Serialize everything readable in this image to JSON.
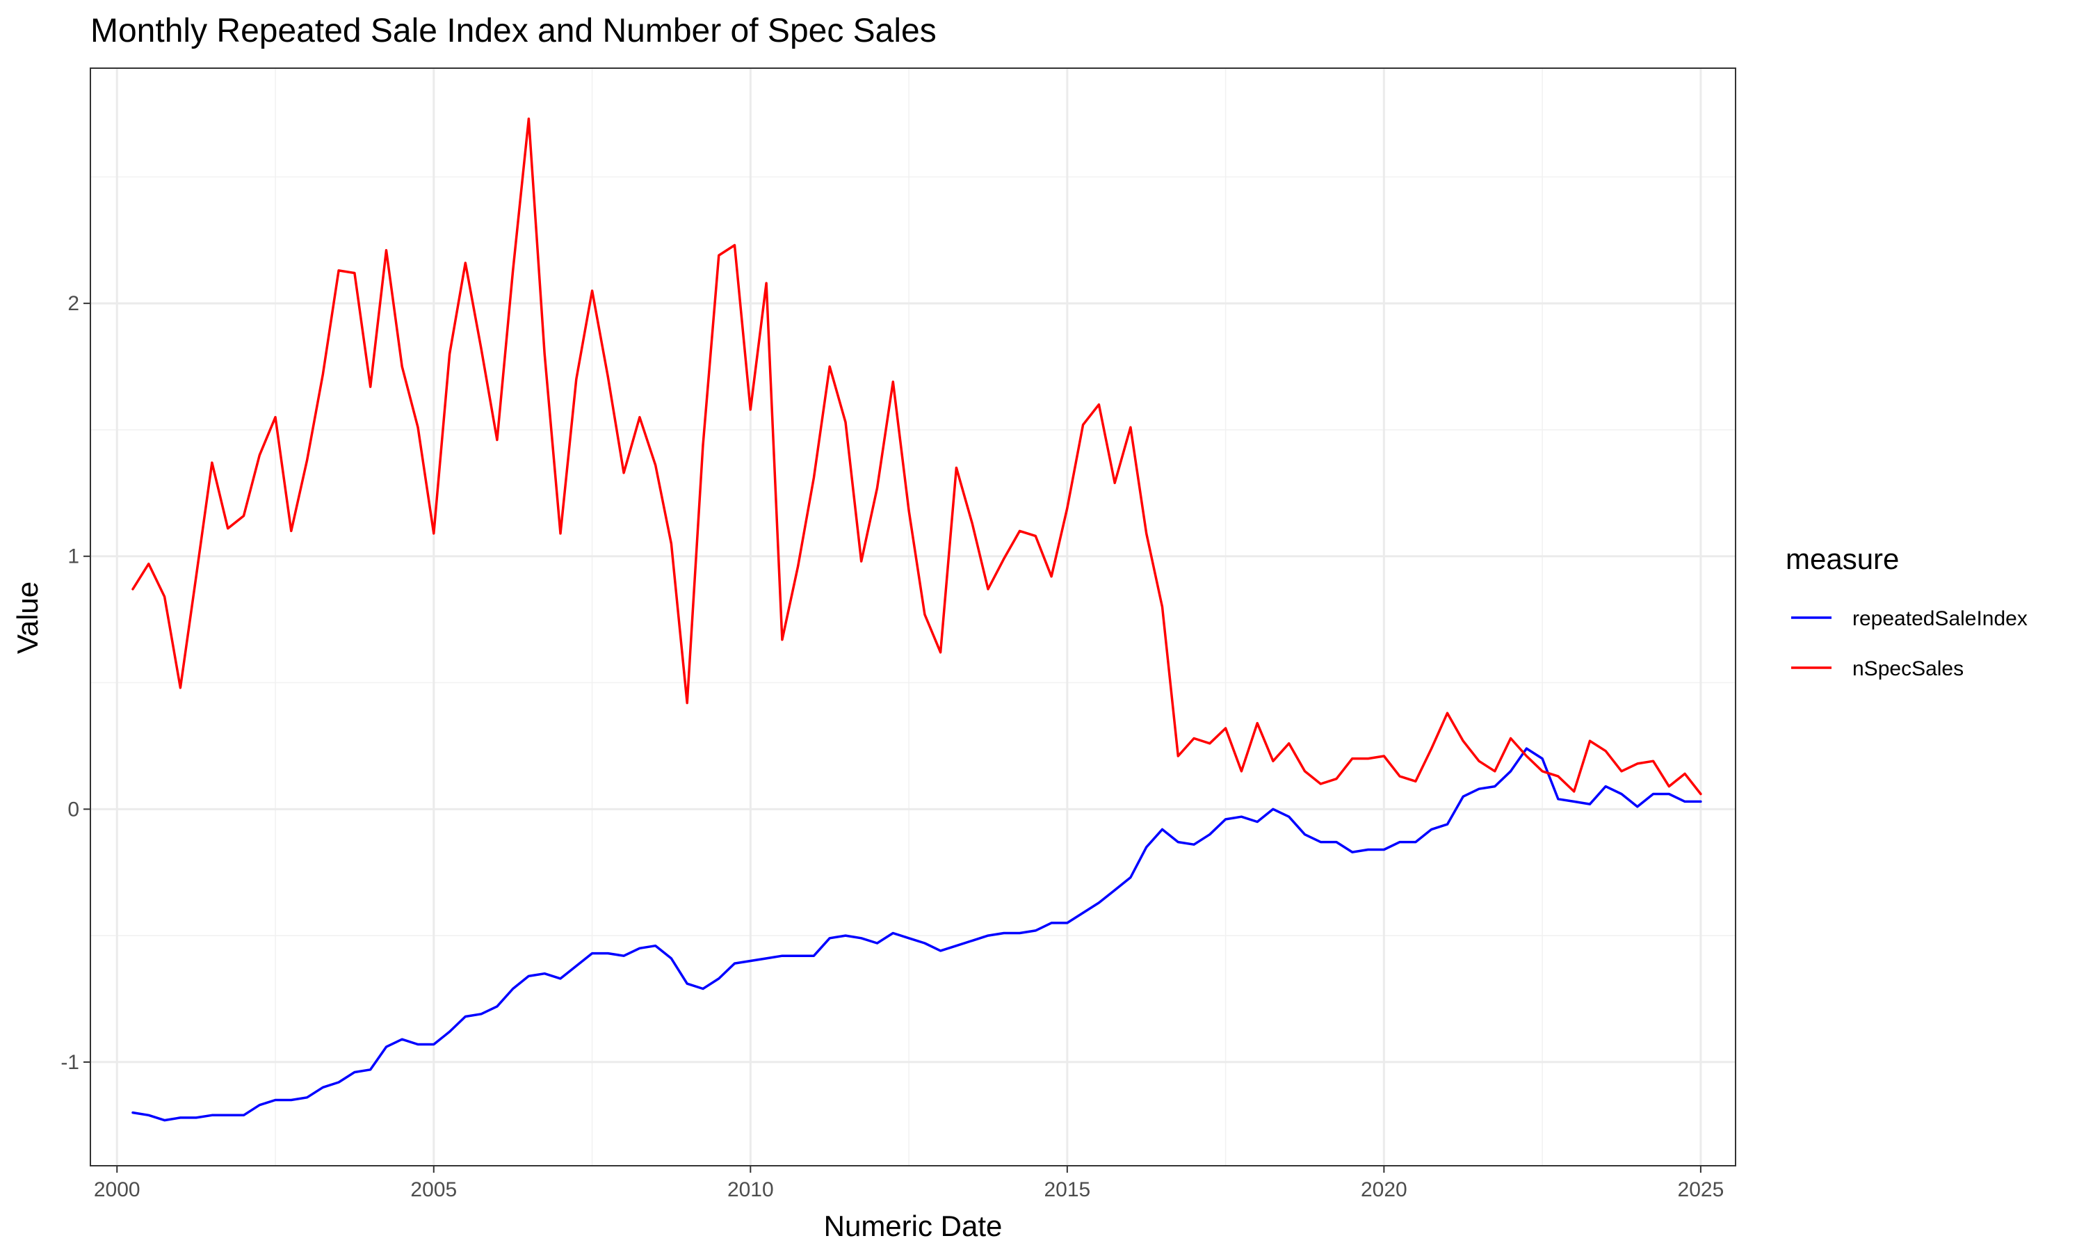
{
  "chart_data": {
    "type": "line",
    "title": "Monthly Repeated Sale Index and Number of Spec Sales",
    "xlabel": "Numeric Date",
    "ylabel": "Value",
    "xlim": [
      1999.58,
      2025.55
    ],
    "ylim": [
      -1.41,
      2.93
    ],
    "x_ticks": [
      2000,
      2005,
      2010,
      2015,
      2020,
      2025
    ],
    "x_tick_labels": [
      "2000",
      "2005",
      "2010",
      "2015",
      "2020",
      "2025"
    ],
    "y_ticks": [
      -1,
      0,
      1,
      2
    ],
    "y_tick_labels": [
      "-1",
      "0",
      "1",
      "2"
    ],
    "grid": true,
    "legend": {
      "title": "measure",
      "position": "right"
    },
    "series": [
      {
        "name": "repeatedSaleIndex",
        "color": "#0000ff",
        "x": [
          2000.25,
          2000.5,
          2000.75,
          2001.0,
          2001.25,
          2001.5,
          2001.75,
          2002.0,
          2002.25,
          2002.5,
          2002.75,
          2003.0,
          2003.25,
          2003.5,
          2003.75,
          2004.0,
          2004.25,
          2004.5,
          2004.75,
          2005.0,
          2005.25,
          2005.5,
          2005.75,
          2006.0,
          2006.25,
          2006.5,
          2006.75,
          2007.0,
          2007.25,
          2007.5,
          2007.75,
          2008.0,
          2008.25,
          2008.5,
          2008.75,
          2009.0,
          2009.25,
          2009.5,
          2009.75,
          2010.0,
          2010.25,
          2010.5,
          2010.75,
          2011.0,
          2011.25,
          2011.5,
          2011.75,
          2012.0,
          2012.25,
          2012.5,
          2012.75,
          2013.0,
          2013.25,
          2013.5,
          2013.75,
          2014.0,
          2014.25,
          2014.5,
          2014.75,
          2015.0,
          2015.25,
          2015.5,
          2015.75,
          2016.0,
          2016.25,
          2016.5,
          2016.75,
          2017.0,
          2017.25,
          2017.5,
          2017.75,
          2018.0,
          2018.25,
          2018.5,
          2018.75,
          2019.0,
          2019.25,
          2019.5,
          2019.75,
          2020.0,
          2020.25,
          2020.5,
          2020.75,
          2021.0,
          2021.25,
          2021.5,
          2021.75,
          2022.0,
          2022.25,
          2022.5,
          2022.75,
          2023.0,
          2023.25,
          2023.5,
          2023.75,
          2024.0,
          2024.25,
          2024.5,
          2024.75,
          2025.0
        ],
        "values": [
          -1.2,
          -1.21,
          -1.23,
          -1.22,
          -1.22,
          -1.21,
          -1.21,
          -1.21,
          -1.17,
          -1.15,
          -1.15,
          -1.14,
          -1.1,
          -1.08,
          -1.04,
          -1.03,
          -0.94,
          -0.91,
          -0.93,
          -0.93,
          -0.88,
          -0.82,
          -0.81,
          -0.78,
          -0.71,
          -0.66,
          -0.65,
          -0.67,
          -0.62,
          -0.57,
          -0.57,
          -0.58,
          -0.55,
          -0.54,
          -0.59,
          -0.69,
          -0.71,
          -0.67,
          -0.61,
          -0.6,
          -0.59,
          -0.58,
          -0.58,
          -0.58,
          -0.51,
          -0.5,
          -0.51,
          -0.53,
          -0.49,
          -0.51,
          -0.53,
          -0.56,
          -0.54,
          -0.52,
          -0.5,
          -0.49,
          -0.49,
          -0.48,
          -0.45,
          -0.45,
          -0.41,
          -0.37,
          -0.32,
          -0.27,
          -0.15,
          -0.08,
          -0.13,
          -0.14,
          -0.1,
          -0.04,
          -0.03,
          -0.05,
          0.0,
          -0.03,
          -0.1,
          -0.13,
          -0.13,
          -0.17,
          -0.16,
          -0.16,
          -0.13,
          -0.13,
          -0.08,
          -0.06,
          0.05,
          0.08,
          0.09,
          0.15,
          0.24,
          0.2,
          0.04,
          0.03,
          0.02,
          0.09,
          0.06,
          0.01,
          0.06,
          0.06,
          0.03,
          0.03
        ]
      },
      {
        "name": "nSpecSales",
        "color": "#ff0000",
        "x": [
          2000.25,
          2000.5,
          2000.75,
          2001.0,
          2001.25,
          2001.5,
          2001.75,
          2002.0,
          2002.25,
          2002.5,
          2002.75,
          2003.0,
          2003.25,
          2003.5,
          2003.75,
          2004.0,
          2004.25,
          2004.5,
          2004.75,
          2005.0,
          2005.25,
          2005.5,
          2005.75,
          2006.0,
          2006.25,
          2006.5,
          2006.75,
          2007.0,
          2007.25,
          2007.5,
          2007.75,
          2008.0,
          2008.25,
          2008.5,
          2008.75,
          2009.0,
          2009.25,
          2009.5,
          2009.75,
          2010.0,
          2010.25,
          2010.5,
          2010.75,
          2011.0,
          2011.25,
          2011.5,
          2011.75,
          2012.0,
          2012.25,
          2012.5,
          2012.75,
          2013.0,
          2013.25,
          2013.5,
          2013.75,
          2014.0,
          2014.25,
          2014.5,
          2014.75,
          2015.0,
          2015.25,
          2015.5,
          2015.75,
          2016.0,
          2016.25,
          2016.5,
          2016.75,
          2017.0,
          2017.25,
          2017.5,
          2017.75,
          2018.0,
          2018.25,
          2018.5,
          2018.75,
          2019.0,
          2019.25,
          2019.5,
          2019.75,
          2020.0,
          2020.25,
          2020.5,
          2020.75,
          2021.0,
          2021.25,
          2021.5,
          2021.75,
          2022.0,
          2022.25,
          2022.5,
          2022.75,
          2023.0,
          2023.25,
          2023.5,
          2023.75,
          2024.0,
          2024.25,
          2024.5,
          2024.75,
          2025.0
        ],
        "values": [
          0.87,
          0.97,
          0.84,
          0.48,
          0.92,
          1.37,
          1.11,
          1.16,
          1.4,
          1.55,
          1.1,
          1.38,
          1.72,
          2.13,
          2.12,
          1.67,
          2.21,
          1.75,
          1.51,
          1.09,
          1.8,
          2.16,
          1.82,
          1.46,
          2.13,
          2.73,
          1.8,
          1.09,
          1.7,
          2.05,
          1.71,
          1.33,
          1.55,
          1.36,
          1.05,
          0.42,
          1.44,
          2.19,
          2.23,
          1.58,
          2.08,
          0.67,
          0.96,
          1.31,
          1.75,
          1.53,
          0.98,
          1.27,
          1.69,
          1.18,
          0.77,
          0.62,
          1.35,
          1.13,
          0.87,
          0.99,
          1.1,
          1.08,
          0.92,
          1.19,
          1.52,
          1.6,
          1.29,
          1.51,
          1.09,
          0.8,
          0.21,
          0.28,
          0.26,
          0.32,
          0.15,
          0.34,
          0.19,
          0.26,
          0.15,
          0.1,
          0.12,
          0.2,
          0.2,
          0.21,
          0.13,
          0.11,
          0.24,
          0.38,
          0.27,
          0.19,
          0.15,
          0.28,
          0.21,
          0.15,
          0.13,
          0.07,
          0.27,
          0.23,
          0.15,
          0.18,
          0.19,
          0.09,
          0.14,
          0.06
        ]
      }
    ]
  }
}
